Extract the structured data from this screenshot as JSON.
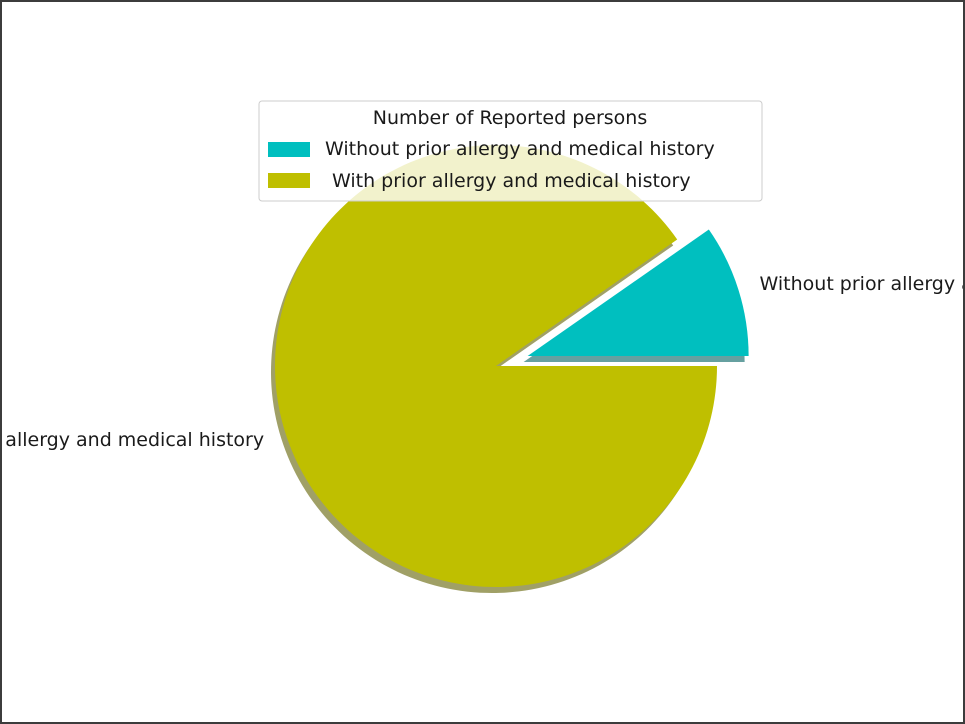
{
  "chart_data": {
    "type": "pie",
    "labels": [
      "Without prior allergy and medical history",
      "With prior allergy and medical history"
    ],
    "values": [
      9.7,
      90.3
    ],
    "colors": [
      "#00bfbf",
      "#bfbf00"
    ],
    "explode": [
      0.15,
      0
    ],
    "shadow": true,
    "start_angle": 0,
    "legend": {
      "title": "Number of Reported persons",
      "placement": "upper-center",
      "entries": [
        "Without prior allergy and medical history",
        "With prior allergy and medical history"
      ]
    }
  }
}
